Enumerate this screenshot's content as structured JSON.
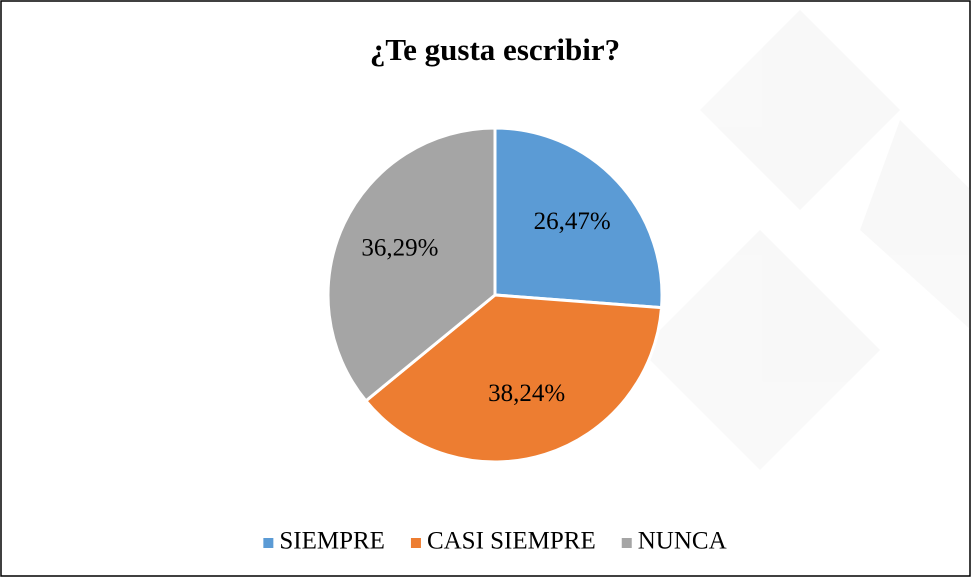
{
  "chart_data": {
    "type": "pie",
    "title": "¿Te gusta escribir?",
    "categories": [
      "SIEMPRE",
      "CASI SIEMPRE",
      "NUNCA"
    ],
    "values": [
      26.47,
      38.24,
      36.29
    ],
    "value_labels": [
      "26,47%",
      "38,24%",
      "36,29%"
    ],
    "colors": [
      "#5b9bd5",
      "#ed7d31",
      "#a5a5a5"
    ],
    "legend": "bottom"
  }
}
